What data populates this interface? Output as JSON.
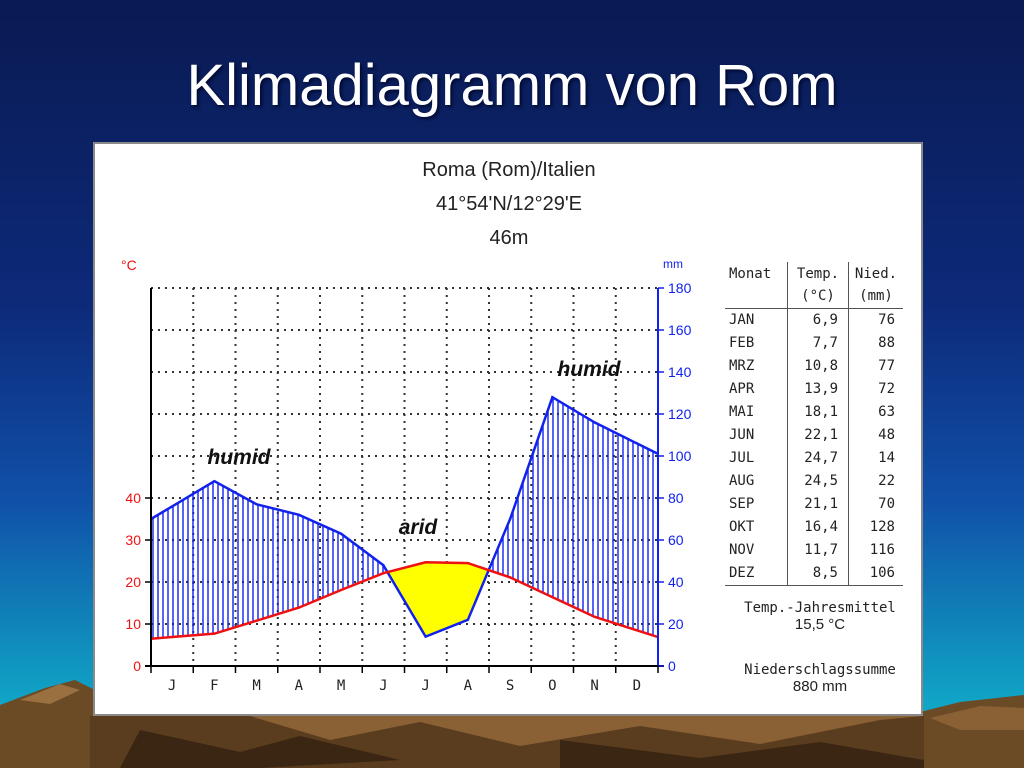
{
  "slide": {
    "title": "Klimadiagramm von Rom"
  },
  "chart_data": {
    "type": "climate_diagram",
    "title": "Roma (Rom)/Italien",
    "subtitle_coords": "41°54'N/12°29'E",
    "subtitle_elevation": "46m",
    "categories": [
      "J",
      "F",
      "M",
      "A",
      "M",
      "J",
      "J",
      "A",
      "S",
      "O",
      "N",
      "D"
    ],
    "left_axis": {
      "unit_label": "°C",
      "ticks": [
        0,
        10,
        20,
        30,
        40
      ],
      "range": [
        0,
        90
      ]
    },
    "right_axis": {
      "unit_label": "mm",
      "ticks": [
        0,
        20,
        40,
        60,
        80,
        100,
        120,
        140,
        160,
        180
      ],
      "range": [
        0,
        180
      ]
    },
    "series": [
      {
        "name": "Temp.",
        "unit": "°C",
        "values": [
          6.9,
          7.7,
          10.8,
          13.9,
          18.1,
          22.1,
          24.7,
          24.5,
          21.1,
          16.4,
          11.7,
          8.5
        ],
        "color": "#ee1111"
      },
      {
        "name": "Nied.",
        "unit": "mm",
        "values": [
          76,
          88,
          77,
          72,
          63,
          48,
          14,
          22,
          70,
          128,
          116,
          106
        ],
        "color": "#1122ee"
      }
    ],
    "annotations": [
      "humid",
      "arid",
      "humid"
    ],
    "grid": true,
    "humid_fill": "#1122ee",
    "arid_fill": "#ffff00",
    "legend_placement": "right"
  },
  "table": {
    "headers": {
      "month": "Monat",
      "temp_line1": "Temp.",
      "temp_line2": "(°C)",
      "precip_line1": "Nied.",
      "precip_line2": "(mm)"
    },
    "rows": [
      {
        "month": "JAN",
        "temp": "6,9",
        "precip": "76"
      },
      {
        "month": "FEB",
        "temp": "7,7",
        "precip": "88"
      },
      {
        "month": "MRZ",
        "temp": "10,8",
        "precip": "77"
      },
      {
        "month": "APR",
        "temp": "13,9",
        "precip": "72"
      },
      {
        "month": "MAI",
        "temp": "18,1",
        "precip": "63"
      },
      {
        "month": "JUN",
        "temp": "22,1",
        "precip": "48"
      },
      {
        "month": "JUL",
        "temp": "24,7",
        "precip": "14"
      },
      {
        "month": "AUG",
        "temp": "24,5",
        "precip": "22"
      },
      {
        "month": "SEP",
        "temp": "21,1",
        "precip": "70"
      },
      {
        "month": "OKT",
        "temp": "16,4",
        "precip": "128"
      },
      {
        "month": "NOV",
        "temp": "11,7",
        "precip": "116"
      },
      {
        "month": "DEZ",
        "temp": "8,5",
        "precip": "106"
      }
    ]
  },
  "summary": {
    "mean_temp_label": "Temp.-Jahresmittel",
    "mean_temp_value": "15,5 °C",
    "precip_sum_label": "Niederschlagssumme",
    "precip_sum_value": "880 mm"
  }
}
